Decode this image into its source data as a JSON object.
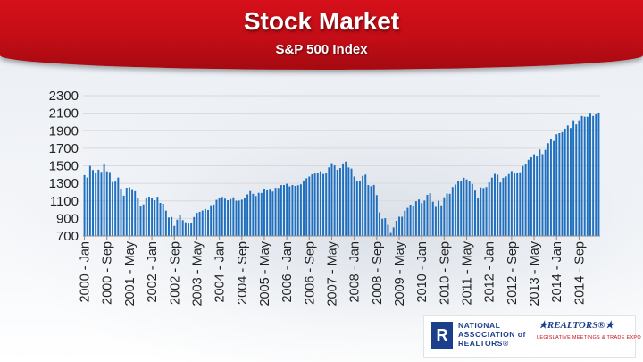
{
  "header": {
    "title": "Stock Market",
    "subtitle": "S&P 500 Index"
  },
  "logos": {
    "nar_mark": "R",
    "nar_lines": [
      "NATIONAL",
      "ASSOCIATION of",
      "REALTORS®"
    ],
    "realtors_mark": "★REALTORS®★",
    "meetings_text": "LEGISLATIVE MEETINGS & TRADE EXPO"
  },
  "colors": {
    "bar": "#1f6fbf",
    "header_red": "#c30d16",
    "grid": "#d9d9d9"
  },
  "chart_data": {
    "type": "bar",
    "title": "Stock Market",
    "subtitle": "S&P 500 Index",
    "xlabel": "",
    "ylabel": "",
    "ylim": [
      700,
      2300
    ],
    "y_ticks": [
      700,
      900,
      1100,
      1300,
      1500,
      1700,
      1900,
      2100,
      2300
    ],
    "grid": true,
    "x_tick_labels": [
      "2000 - Jan",
      "2000 - Sep",
      "2001 - May",
      "2002 - Jan",
      "2002 - Sep",
      "2003 - May",
      "2004 - Jan",
      "2004 - Sep",
      "2005 - May",
      "2006 - Jan",
      "2006 - Sep",
      "2007 - May",
      "2008 - Jan",
      "2008 - Sep",
      "2009 - May",
      "2010 - Jan",
      "2010 - Sep",
      "2011 - May",
      "2012 - Jan",
      "2012 - Sep",
      "2013 - May",
      "2014 - Jan",
      "2014 - Sep"
    ],
    "series": [
      {
        "values": [
          1394,
          1366,
          1499,
          1452,
          1421,
          1455,
          1431,
          1518,
          1437,
          1429,
          1315,
          1320,
          1366,
          1240,
          1160,
          1250,
          1256,
          1224,
          1211,
          1134,
          1041,
          1060,
          1139,
          1148,
          1130,
          1107,
          1147,
          1077,
          1067,
          989,
          911,
          916,
          815,
          886,
          936,
          880,
          856,
          841,
          848,
          916,
          964,
          975,
          990,
          1008,
          996,
          1050,
          1058,
          1112,
          1132,
          1145,
          1126,
          1107,
          1121,
          1141,
          1102,
          1104,
          1114,
          1130,
          1174,
          1212,
          1181,
          1156,
          1192,
          1191,
          1234,
          1220,
          1228,
          1207,
          1249,
          1248,
          1280,
          1281,
          1295,
          1265,
          1281,
          1271,
          1278,
          1289,
          1333,
          1358,
          1378,
          1403,
          1412,
          1418,
          1438,
          1407,
          1421,
          1482,
          1530,
          1504,
          1455,
          1474,
          1527,
          1549,
          1481,
          1468,
          1378,
          1331,
          1322,
          1385,
          1400,
          1280,
          1267,
          1282,
          1166,
          969,
          896,
          903,
          826,
          735,
          798,
          873,
          919,
          919,
          987,
          1020,
          1057,
          1036,
          1096,
          1116,
          1074,
          1104,
          1169,
          1187,
          1090,
          1031,
          1101,
          1049,
          1141,
          1184,
          1181,
          1258,
          1286,
          1327,
          1325,
          1364,
          1345,
          1321,
          1293,
          1218,
          1131,
          1253,
          1247,
          1258,
          1312,
          1366,
          1408,
          1398,
          1310,
          1362,
          1379,
          1406,
          1440,
          1412,
          1416,
          1426,
          1498,
          1515,
          1569,
          1597,
          1631,
          1606,
          1686,
          1633,
          1682,
          1757,
          1806,
          1783,
          1859,
          1872,
          1884,
          1924,
          1960,
          1931,
          2018,
          1972,
          2018,
          2067,
          2059,
          2058,
          2104,
          2068,
          2086,
          2107
        ],
        "start": "2000 - Jan",
        "frequency": "monthly"
      }
    ]
  }
}
